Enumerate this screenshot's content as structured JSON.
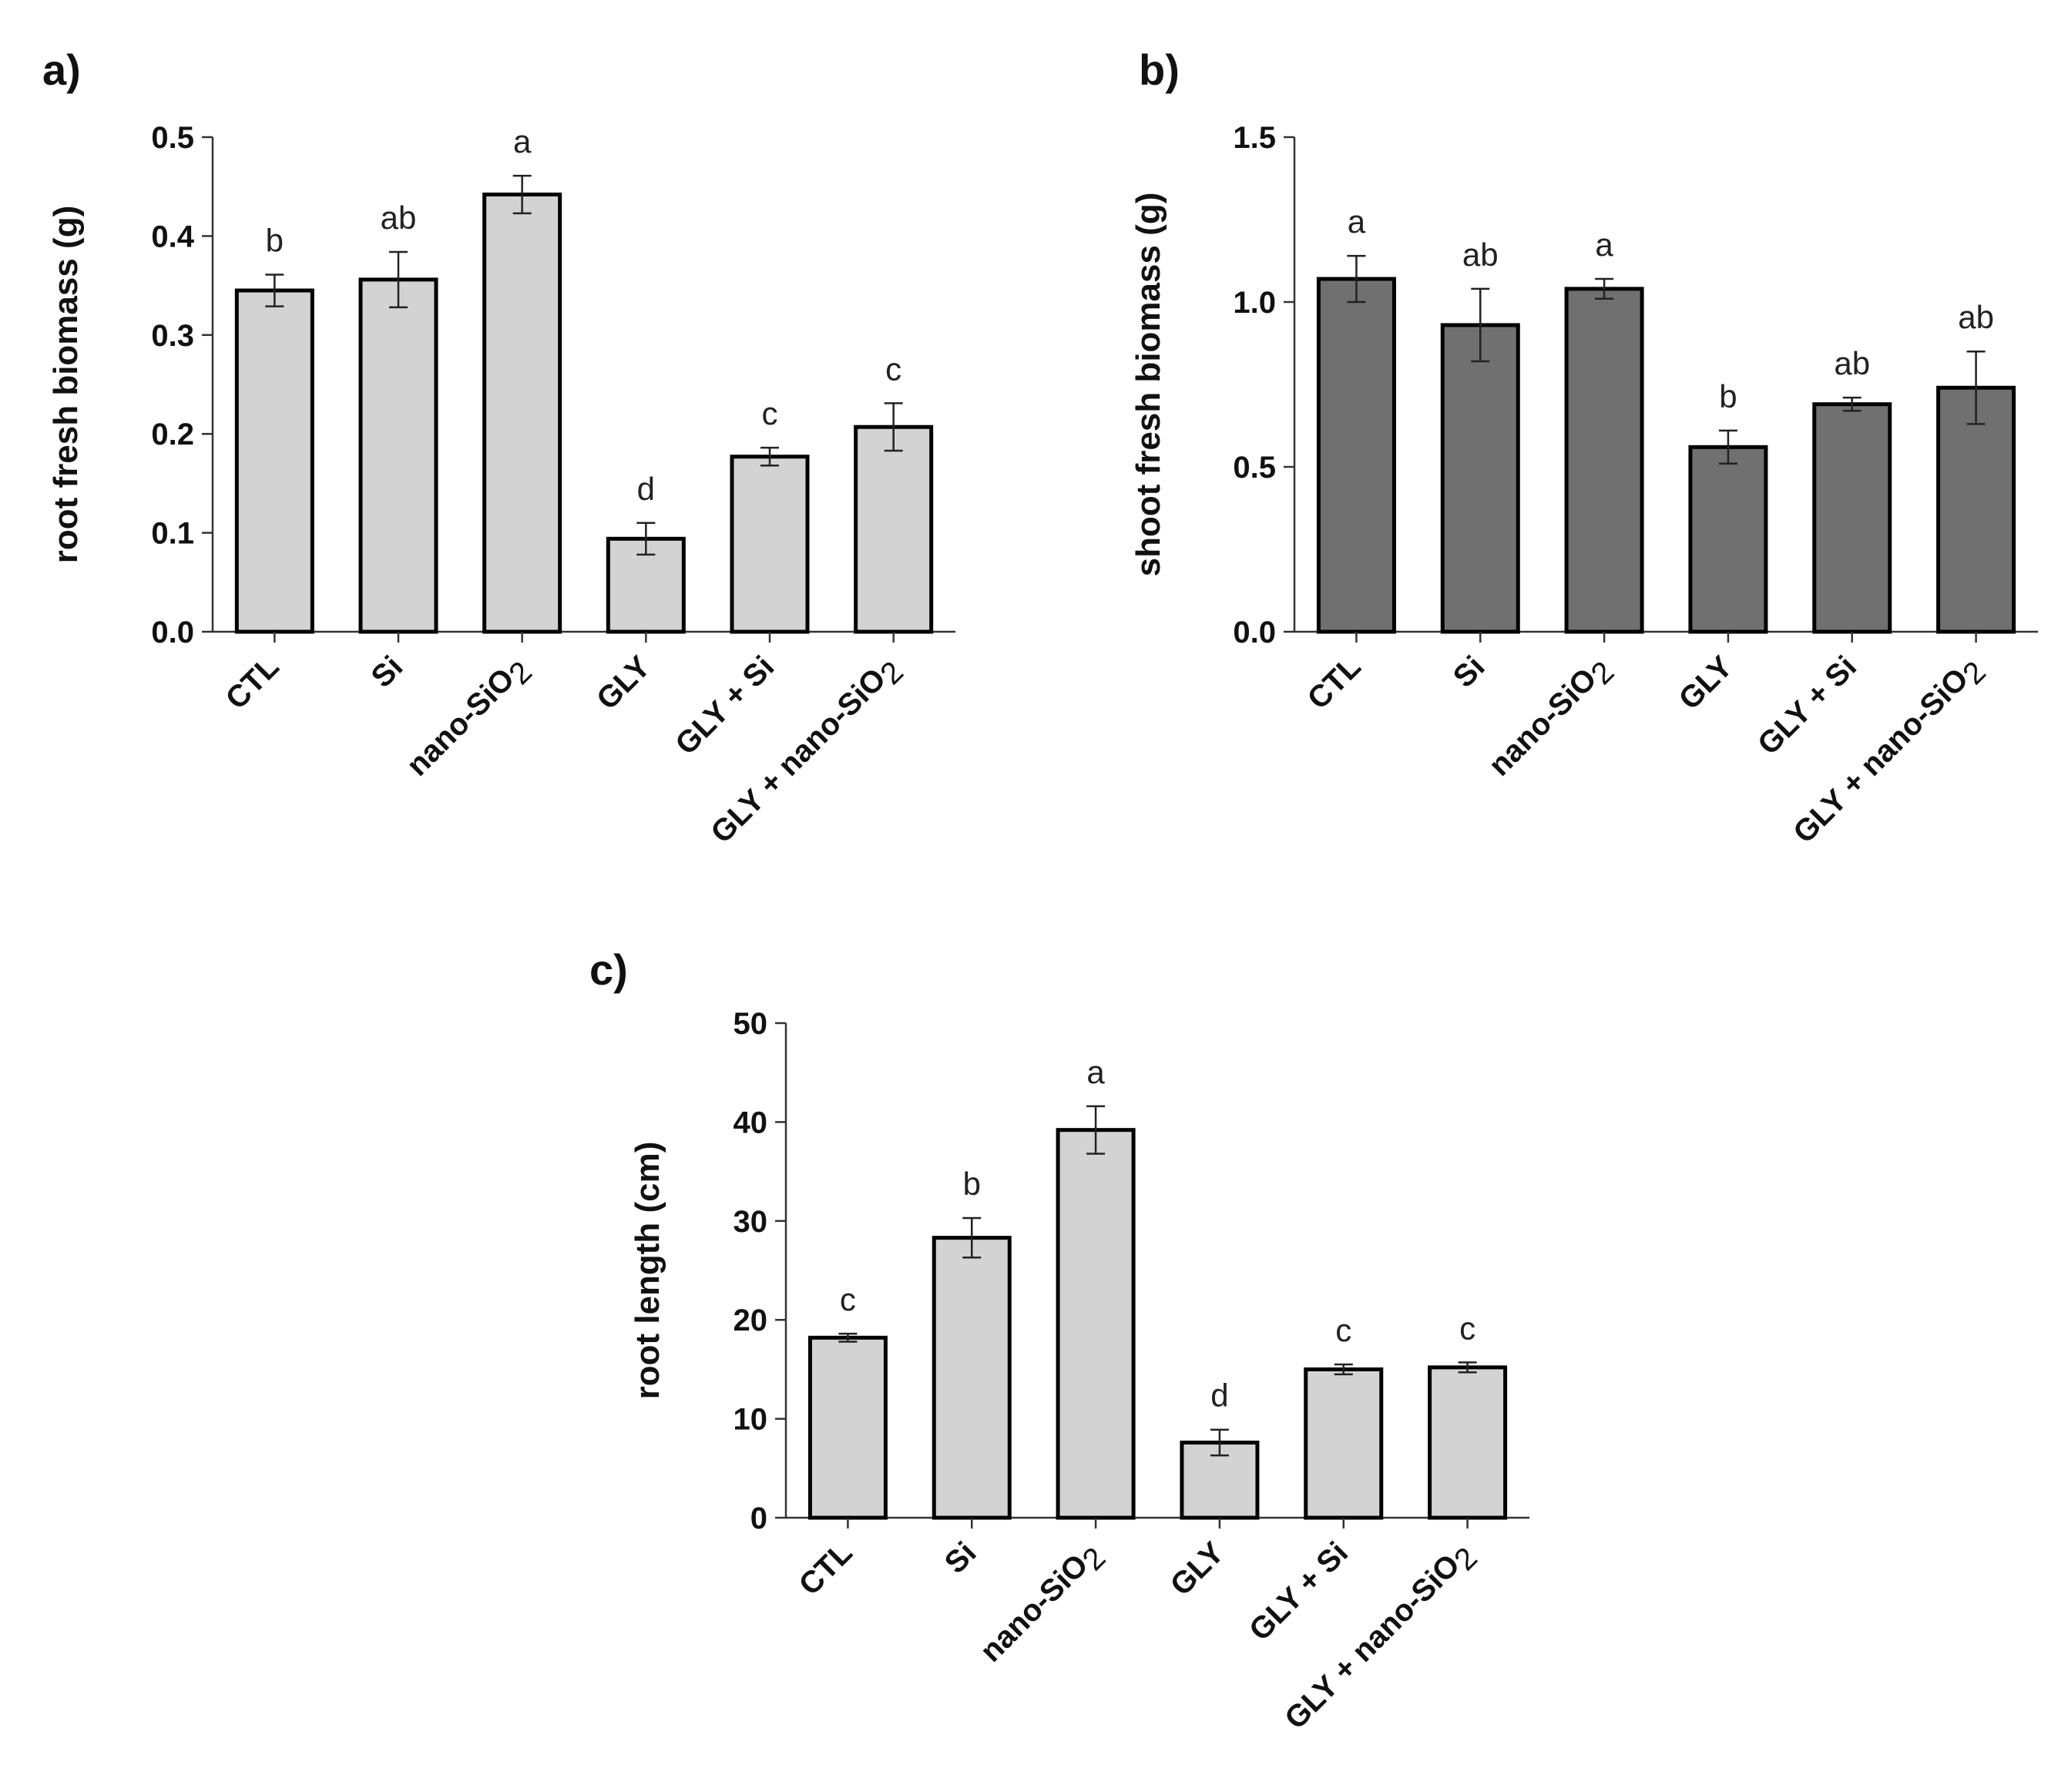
{
  "chart_data": [
    {
      "panel": "a)",
      "type": "bar",
      "categories": [
        "CTL",
        "Si",
        "nano-SiO2",
        "GLY",
        "GLY + Si",
        "GLY + nano-SiO2"
      ],
      "values": [
        0.345,
        0.356,
        0.442,
        0.094,
        0.177,
        0.207
      ],
      "errors": [
        0.016,
        0.028,
        0.019,
        0.016,
        0.009,
        0.024
      ],
      "significance": [
        "b",
        "ab",
        "a",
        "d",
        "c",
        "c"
      ],
      "ylabel": "root fresh biomass (g)",
      "xlabel": "",
      "ylim": [
        0,
        0.5
      ],
      "yticks": [
        0.0,
        0.1,
        0.2,
        0.3,
        0.4,
        0.5
      ],
      "ytick_labels": [
        "0.0",
        "0.1",
        "0.2",
        "0.3",
        "0.4",
        "0.5"
      ],
      "bar_color": "#d3d3d3"
    },
    {
      "panel": "b)",
      "type": "bar",
      "categories": [
        "CTL",
        "Si",
        "nano-SiO2",
        "GLY",
        "GLY + Si",
        "GLY + nano-SiO2"
      ],
      "values": [
        1.07,
        0.93,
        1.04,
        0.56,
        0.69,
        0.74
      ],
      "errors": [
        0.07,
        0.11,
        0.03,
        0.05,
        0.02,
        0.11
      ],
      "significance": [
        "a",
        "ab",
        "a",
        "b",
        "ab",
        "ab"
      ],
      "ylabel": "shoot fresh biomass  (g)",
      "xlabel": "",
      "ylim": [
        0,
        1.5
      ],
      "yticks": [
        0.0,
        0.5,
        1.0,
        1.5
      ],
      "ytick_labels": [
        "0.0",
        "0.5",
        "1.0",
        "1.5"
      ],
      "bar_color": "#707070"
    },
    {
      "panel": "c)",
      "type": "bar",
      "categories": [
        "CTL",
        "Si",
        "nano-SiO2",
        "GLY",
        "GLY + Si",
        "GLY + nano-SiO2"
      ],
      "values": [
        18.2,
        28.3,
        39.2,
        7.6,
        15.0,
        15.2
      ],
      "errors": [
        0.4,
        2.0,
        2.4,
        1.3,
        0.5,
        0.5
      ],
      "significance": [
        "c",
        "b",
        "a",
        "d",
        "c",
        "c"
      ],
      "ylabel": "root length  (cm)",
      "xlabel": "",
      "ylim": [
        0,
        50
      ],
      "yticks": [
        0,
        10,
        20,
        30,
        40,
        50
      ],
      "ytick_labels": [
        "0",
        "10",
        "20",
        "30",
        "40",
        "50"
      ],
      "bar_color": "#d3d3d3"
    }
  ]
}
